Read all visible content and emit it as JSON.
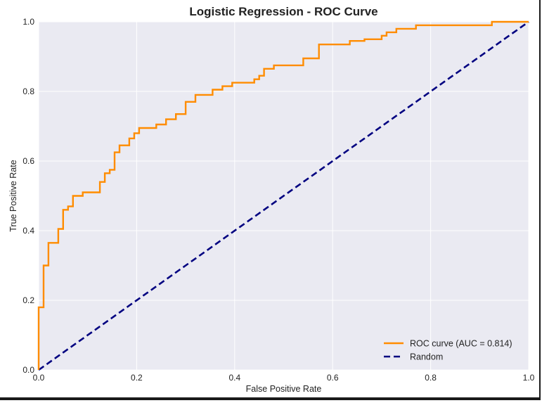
{
  "chart_data": {
    "type": "line",
    "title": "Logistic Regression - ROC Curve",
    "xlabel": "False Positive Rate",
    "ylabel": "True Positive Rate",
    "xlim": [
      0.0,
      1.0
    ],
    "ylim": [
      0.0,
      1.0
    ],
    "xticks": [
      0.0,
      0.2,
      0.4,
      0.6,
      0.8,
      1.0
    ],
    "yticks": [
      0.0,
      0.2,
      0.4,
      0.6,
      0.8,
      1.0
    ],
    "xtick_labels": [
      "0.0",
      "0.2",
      "0.4",
      "0.6",
      "0.8",
      "1.0"
    ],
    "ytick_labels": [
      "0.0",
      "0.2",
      "0.4",
      "0.6",
      "0.8",
      "1.0"
    ],
    "grid": true,
    "background": "#eaeaf2",
    "legend_position": "lower-right",
    "series": [
      {
        "name": "ROC curve (AUC = 0.814)",
        "color": "#ff8c00",
        "style": "solid",
        "step": true,
        "x": [
          0.0,
          0.0,
          0.01,
          0.01,
          0.02,
          0.02,
          0.04,
          0.04,
          0.05,
          0.05,
          0.06,
          0.06,
          0.07,
          0.07,
          0.09,
          0.09,
          0.125,
          0.125,
          0.135,
          0.135,
          0.145,
          0.145,
          0.155,
          0.155,
          0.165,
          0.165,
          0.185,
          0.185,
          0.195,
          0.195,
          0.205,
          0.205,
          0.24,
          0.24,
          0.26,
          0.26,
          0.28,
          0.28,
          0.3,
          0.3,
          0.32,
          0.32,
          0.355,
          0.355,
          0.375,
          0.375,
          0.395,
          0.395,
          0.44,
          0.44,
          0.45,
          0.45,
          0.46,
          0.46,
          0.48,
          0.48,
          0.54,
          0.54,
          0.572,
          0.572,
          0.635,
          0.635,
          0.665,
          0.665,
          0.7,
          0.7,
          0.71,
          0.71,
          0.73,
          0.73,
          0.77,
          0.77,
          0.925,
          0.925,
          1.0
        ],
        "y": [
          0.0,
          0.18,
          0.18,
          0.3,
          0.3,
          0.365,
          0.365,
          0.405,
          0.405,
          0.46,
          0.46,
          0.47,
          0.47,
          0.5,
          0.5,
          0.51,
          0.51,
          0.54,
          0.54,
          0.565,
          0.565,
          0.575,
          0.575,
          0.625,
          0.625,
          0.645,
          0.645,
          0.665,
          0.665,
          0.68,
          0.68,
          0.695,
          0.695,
          0.705,
          0.705,
          0.72,
          0.72,
          0.735,
          0.735,
          0.77,
          0.77,
          0.79,
          0.79,
          0.805,
          0.805,
          0.815,
          0.815,
          0.825,
          0.825,
          0.835,
          0.835,
          0.845,
          0.845,
          0.865,
          0.865,
          0.875,
          0.875,
          0.895,
          0.895,
          0.935,
          0.935,
          0.945,
          0.945,
          0.95,
          0.95,
          0.96,
          0.96,
          0.97,
          0.97,
          0.98,
          0.98,
          0.99,
          0.99,
          1.0,
          1.0
        ]
      },
      {
        "name": "Random",
        "color": "#000080",
        "style": "dashed",
        "x": [
          0.0,
          1.0
        ],
        "y": [
          0.0,
          1.0
        ]
      }
    ]
  }
}
